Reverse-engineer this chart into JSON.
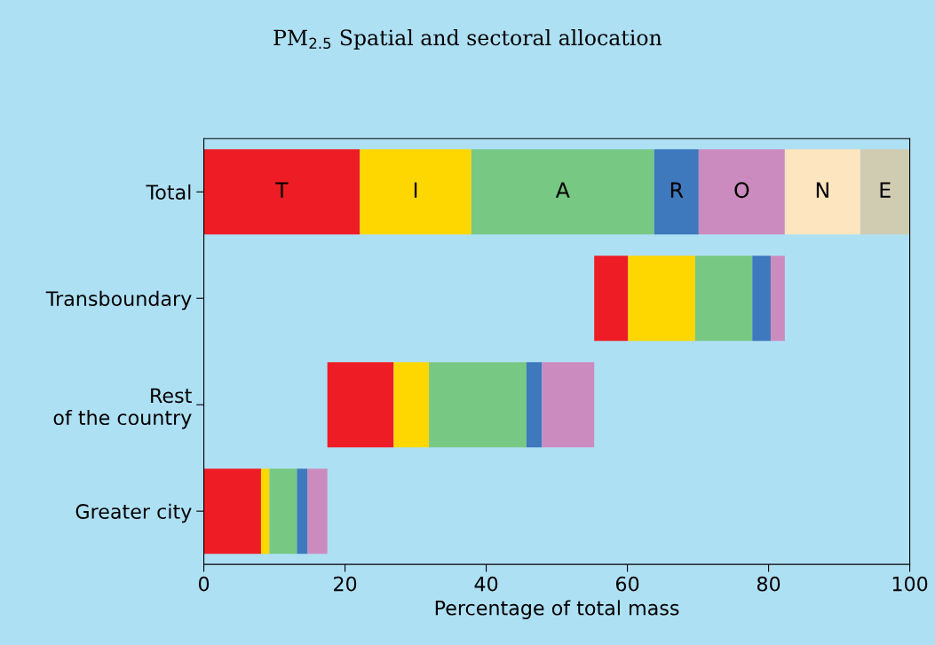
{
  "chart_data": {
    "type": "bar",
    "orientation": "horizontal",
    "title": "PM$_{2.5}$ Spatial and sectoral allocation",
    "xlabel": "Percentage of total mass",
    "categories": [
      "Total",
      "Transboundary",
      "Rest\nof the country",
      "Greater city"
    ],
    "series": [
      {
        "name": "T",
        "color": "#ee1c25",
        "base": [
          0,
          55.3,
          17.5,
          0
        ],
        "values": [
          22.1,
          4.8,
          9.4,
          8.1
        ]
      },
      {
        "name": "I",
        "color": "#ffd700",
        "base": [
          22.1,
          60.1,
          26.9,
          8.1
        ],
        "values": [
          15.8,
          9.5,
          5.0,
          1.2
        ]
      },
      {
        "name": "A",
        "color": "#77c883",
        "base": [
          37.9,
          69.6,
          31.9,
          9.3
        ],
        "values": [
          25.9,
          8.1,
          13.8,
          3.9
        ]
      },
      {
        "name": "R",
        "color": "#3e78bd",
        "base": [
          63.8,
          77.7,
          45.7,
          13.2
        ],
        "values": [
          6.3,
          2.6,
          2.2,
          1.5
        ]
      },
      {
        "name": "O",
        "color": "#cc8bbf",
        "base": [
          70.1,
          80.3,
          47.9,
          14.7
        ],
        "values": [
          12.2,
          2.0,
          7.4,
          2.8
        ]
      },
      {
        "name": "N",
        "color": "#fde5bf",
        "base": [
          82.3,
          null,
          null,
          null
        ],
        "values": [
          10.7,
          null,
          null,
          null
        ]
      },
      {
        "name": "E",
        "color": "#cfccb2",
        "base": [
          93.0,
          null,
          null,
          null
        ],
        "values": [
          7.0,
          null,
          null,
          null
        ]
      }
    ],
    "xlim": [
      0,
      100
    ],
    "xticks": [
      0,
      20,
      40,
      60,
      80,
      100
    ]
  }
}
